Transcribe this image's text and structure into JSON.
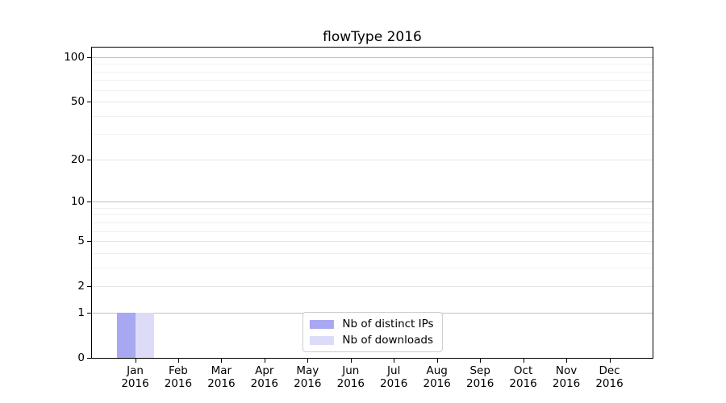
{
  "figure": {
    "background": "#ffffff"
  },
  "chart_data": {
    "type": "bar",
    "title": "flowType 2016",
    "categories": [
      "Jan 2016",
      "Feb 2016",
      "Mar 2016",
      "Apr 2016",
      "May 2016",
      "Jun 2016",
      "Jul 2016",
      "Aug 2016",
      "Sep 2016",
      "Oct 2016",
      "Nov 2016",
      "Dec 2016"
    ],
    "series": [
      {
        "name": "Nb of distinct IPs",
        "color": "#a8a8f2",
        "values": [
          1,
          0,
          0,
          0,
          0,
          0,
          0,
          0,
          0,
          0,
          0,
          0
        ]
      },
      {
        "name": "Nb of downloads",
        "color": "#dcdcf9",
        "values": [
          1,
          0,
          0,
          0,
          0,
          0,
          0,
          0,
          0,
          0,
          0,
          0
        ]
      }
    ],
    "xlabel": "",
    "ylabel": "",
    "y_scale": "log1p",
    "y_ticks": [
      0,
      1,
      2,
      5,
      10,
      20,
      50,
      100
    ],
    "y_minor_ticks": [
      3,
      4,
      6,
      7,
      8,
      9,
      30,
      40,
      60,
      70,
      80,
      90
    ],
    "y_major_gridlines": [
      1,
      10,
      100
    ],
    "ylim": [
      0,
      116
    ],
    "grid": true,
    "legend_position": "lower center"
  }
}
